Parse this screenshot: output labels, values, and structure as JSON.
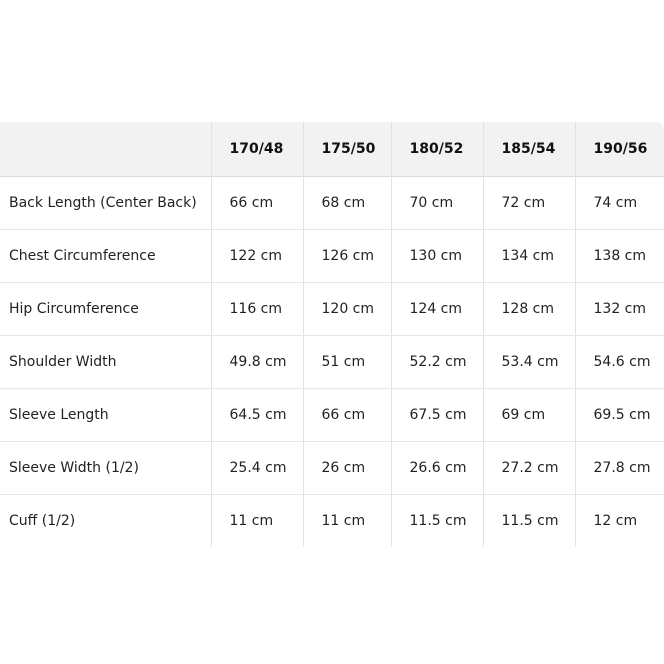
{
  "table": {
    "headers": [
      "",
      "170/48",
      "175/50",
      "180/52",
      "185/54",
      "190/56"
    ],
    "rows": [
      [
        "Back Length (Center Back)",
        "66 cm",
        "68 cm",
        "70 cm",
        "72 cm",
        "74 cm"
      ],
      [
        "Chest Circumference",
        "122 cm",
        "126 cm",
        "130 cm",
        "134 cm",
        "138 cm"
      ],
      [
        "Hip Circumference",
        "116 cm",
        "120 cm",
        "124 cm",
        "128 cm",
        "132 cm"
      ],
      [
        "Shoulder Width",
        "49.8 cm",
        "51 cm",
        "52.2 cm",
        "53.4 cm",
        "54.6 cm"
      ],
      [
        "Sleeve Length",
        "64.5 cm",
        "66 cm",
        "67.5 cm",
        "69 cm",
        "69.5 cm"
      ],
      [
        "Sleeve Width (1/2)",
        "25.4 cm",
        "26 cm",
        "26.6 cm",
        "27.2 cm",
        "27.8 cm"
      ],
      [
        "Cuff (1/2)",
        "11 cm",
        "11 cm",
        "11.5 cm",
        "11.5 cm",
        "12 cm"
      ]
    ]
  }
}
